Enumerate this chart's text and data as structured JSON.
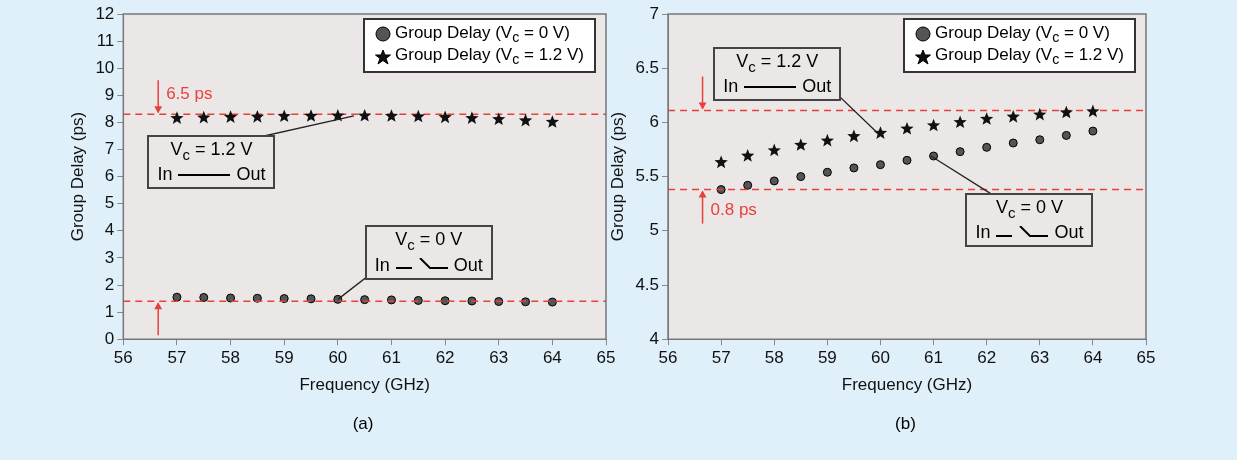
{
  "chart_data": [
    {
      "type": "scatter",
      "xlabel": "Frequency (GHz)",
      "ylabel": "Group Delay (ps)",
      "xlim": [
        56,
        65
      ],
      "xticks": [
        56,
        57,
        58,
        59,
        60,
        61,
        62,
        63,
        64,
        65
      ],
      "ylim": [
        0,
        12
      ],
      "yticks": [
        0,
        1,
        2,
        3,
        4,
        5,
        6,
        7,
        8,
        9,
        10,
        11,
        12
      ],
      "grid": false,
      "legend": "top right",
      "x": [
        57,
        57.5,
        58,
        58.5,
        59,
        59.5,
        60,
        60.5,
        61,
        61.5,
        62,
        62.5,
        63,
        63.5,
        64
      ],
      "series": [
        {
          "name": "Group Delay (V$_{c}$ = 0 V)",
          "color": "#555555",
          "marker": "circle",
          "values": [
            1.55,
            1.54,
            1.52,
            1.51,
            1.5,
            1.49,
            1.47,
            1.46,
            1.45,
            1.43,
            1.42,
            1.41,
            1.39,
            1.38,
            1.37
          ]
        },
        {
          "name": "Group Delay (V$_{c}$ = 1.2 V)",
          "color": "#111111",
          "marker": "star",
          "values": [
            8.15,
            8.17,
            8.19,
            8.2,
            8.22,
            8.23,
            8.24,
            8.24,
            8.23,
            8.21,
            8.18,
            8.15,
            8.11,
            8.06,
            8.01
          ]
        }
      ],
      "ref_lines": [
        {
          "axis": "y",
          "value": 8.3,
          "color": "#e8413c",
          "line_style": "dashed"
        },
        {
          "axis": "y",
          "value": 1.4,
          "color": "#e8413c",
          "line_style": "dashed"
        }
      ],
      "annotations": [
        "6.5 ps",
        {
          "text": "V$_{c}$ = 1.2 V",
          "x": 60.3,
          "y": 8.24
        },
        "In",
        "Out",
        {
          "text": "V$_{c}$ = 0 V",
          "x": 60.0,
          "y": 1.47
        },
        "In",
        "Out",
        "(a)"
      ]
    },
    {
      "type": "scatter",
      "xlabel": "Frequency (GHz)",
      "ylabel": "Group Delay (ps)",
      "xlim": [
        56,
        65
      ],
      "xticks": [
        56,
        57,
        58,
        59,
        60,
        61,
        62,
        63,
        64,
        65
      ],
      "ylim": [
        4,
        7
      ],
      "yticks": [
        4,
        4.5,
        5,
        5.5,
        6,
        6.5,
        7
      ],
      "grid": false,
      "legend": "top right",
      "x": [
        57,
        57.5,
        58,
        58.5,
        59,
        59.5,
        60,
        60.5,
        61,
        61.5,
        62,
        62.5,
        63,
        63.5,
        64
      ],
      "series": [
        {
          "name": "Group Delay (V$_{c}$ = 0 V)",
          "color": "#555555",
          "marker": "circle",
          "values": [
            5.38,
            5.42,
            5.46,
            5.5,
            5.54,
            5.58,
            5.61,
            5.65,
            5.69,
            5.73,
            5.77,
            5.81,
            5.84,
            5.88,
            5.92
          ]
        },
        {
          "name": "Group Delay (V$_{c}$ = 1.2 V)",
          "color": "#111111",
          "marker": "star",
          "values": [
            5.63,
            5.69,
            5.74,
            5.79,
            5.83,
            5.87,
            5.9,
            5.94,
            5.97,
            6.0,
            6.03,
            6.05,
            6.07,
            6.09,
            6.1
          ]
        }
      ],
      "ref_lines": [
        {
          "axis": "y",
          "value": 6.11,
          "color": "#e8413c",
          "line_style": "dashed"
        },
        {
          "axis": "y",
          "value": 5.38,
          "color": "#e8413c",
          "line_style": "dashed"
        }
      ],
      "annotations": [
        "0.8 ps",
        {
          "text": "V$_{c}$ = 1.2 V",
          "x": 59.95,
          "y": 5.9
        },
        "In",
        "Out",
        {
          "text": "V$_{c}$ = 0 V",
          "x": 60.95,
          "y": 5.69
        },
        "In",
        "Out",
        "(b)"
      ]
    }
  ]
}
